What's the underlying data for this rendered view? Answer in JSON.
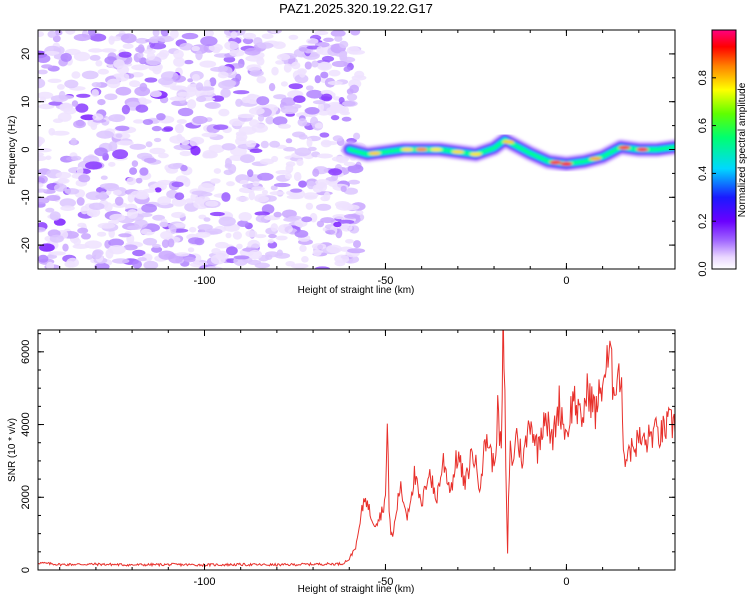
{
  "title": "PAZ1.2025.320.19.22.G17",
  "chart_data": [
    {
      "type": "heatmap",
      "xlabel": "Height of straight line (km)",
      "ylabel": "Frequency (Hz)",
      "xlim": [
        -146,
        30
      ],
      "ylim": [
        -25,
        25
      ],
      "x_ticks": [
        -100,
        -50,
        0
      ],
      "y_ticks": [
        -20,
        -10,
        0,
        10,
        20
      ],
      "x_tick_labels": [
        "-100",
        "-50",
        "0"
      ],
      "y_tick_labels": [
        "-20",
        "-10",
        "0",
        "10",
        "20"
      ],
      "noise_region_x": [
        -146,
        -57
      ],
      "signal_track": {
        "x": [
          -60,
          -55,
          -50,
          -45,
          -40,
          -35,
          -30,
          -25,
          -20,
          -17,
          -14,
          -10,
          -5,
          0,
          5,
          10,
          15,
          20,
          25,
          30
        ],
        "freq": [
          0,
          -1,
          -0.5,
          0,
          0,
          0,
          -0.5,
          -1,
          0.3,
          2,
          0.8,
          -0.8,
          -2.5,
          -3,
          -2.5,
          -1.5,
          0.5,
          0,
          0,
          0.5
        ]
      },
      "colorbar": {
        "label": "Normalized spectral amplitude",
        "range": [
          0.0,
          1.0
        ],
        "ticks": [
          0.0,
          0.2,
          0.4,
          0.6,
          0.8
        ],
        "tick_labels": [
          "0.0",
          "0.2",
          "0.4",
          "0.6",
          "0.8"
        ]
      }
    },
    {
      "type": "line",
      "xlabel": "Height of straight line (km)",
      "ylabel": "SNR (10 * v/v)",
      "xlim": [
        -146,
        30
      ],
      "ylim": [
        0,
        6600
      ],
      "x_ticks": [
        -100,
        -50,
        0
      ],
      "y_ticks": [
        0,
        2000,
        4000,
        6000
      ],
      "x_tick_labels": [
        "-100",
        "-50",
        "0"
      ],
      "y_tick_labels": [
        "0",
        "2000",
        "4000",
        "6000"
      ],
      "color": "#e8302b",
      "series": [
        {
          "name": "SNR",
          "x": [
            -146,
            -140,
            -130,
            -120,
            -110,
            -100,
            -90,
            -80,
            -70,
            -62,
            -60,
            -58,
            -57,
            -56,
            -55.5,
            -55,
            -54,
            -53,
            -52,
            -51,
            -50,
            -49.5,
            -49,
            -48.5,
            -48,
            -46,
            -44,
            -42,
            -40,
            -38,
            -36,
            -34,
            -32,
            -30,
            -28,
            -26,
            -24,
            -22,
            -20,
            -19,
            -18,
            -17.5,
            -17,
            -16.5,
            -16.2,
            -16,
            -15.5,
            -15,
            -14,
            -12,
            -10,
            -8,
            -6,
            -4,
            -2,
            0,
            2,
            4,
            6,
            8,
            10,
            12,
            13,
            14,
            15,
            15.5,
            16,
            16.5,
            17,
            18,
            20,
            22,
            24,
            26,
            28,
            30
          ],
          "y": [
            200,
            150,
            160,
            140,
            150,
            140,
            150,
            140,
            160,
            170,
            300,
            700,
            1300,
            1900,
            2100,
            1800,
            1500,
            1300,
            1400,
            1600,
            2000,
            3900,
            1800,
            1000,
            900,
            2300,
            1500,
            2600,
            1700,
            2800,
            1900,
            3000,
            2200,
            3200,
            2300,
            3300,
            2400,
            3700,
            2800,
            4300,
            3200,
            6600,
            4500,
            1500,
            200,
            2000,
            3600,
            2700,
            3800,
            3000,
            4200,
            3300,
            4400,
            3500,
            4600,
            3700,
            4800,
            4000,
            5000,
            4300,
            5200,
            5900,
            5000,
            5500,
            5300,
            4200,
            3200,
            3000,
            3400,
            3300,
            3600,
            3500,
            3800,
            3700,
            4000,
            4000
          ]
        }
      ]
    }
  ]
}
